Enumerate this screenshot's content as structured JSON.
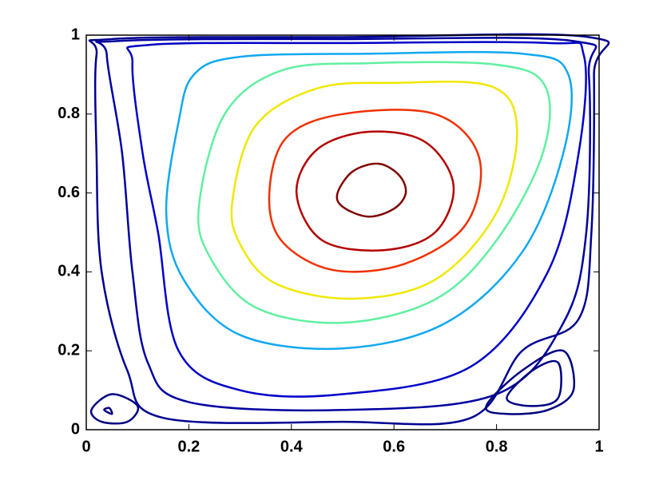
{
  "chart_data": {
    "type": "contour",
    "xlim": [
      0,
      1
    ],
    "ylim": [
      0,
      1
    ],
    "xticks": [
      0,
      0.2,
      0.4,
      0.6,
      0.8,
      1
    ],
    "yticks": [
      0,
      0.2,
      0.4,
      0.6,
      0.8,
      1
    ],
    "contours": [
      {
        "color": "#800000",
        "x": [
          0.49,
          0.52,
          0.57,
          0.61,
          0.623,
          0.6,
          0.55,
          0.5
        ],
        "y": [
          0.6,
          0.655,
          0.674,
          0.645,
          0.6,
          0.56,
          0.54,
          0.565
        ]
      },
      {
        "color": "#b40000",
        "x": [
          0.41,
          0.45,
          0.55,
          0.66,
          0.716,
          0.68,
          0.58,
          0.46
        ],
        "y": [
          0.6,
          0.71,
          0.755,
          0.73,
          0.62,
          0.5,
          0.455,
          0.48
        ]
      },
      {
        "color": "#f03000",
        "x": [
          0.357,
          0.39,
          0.5,
          0.68,
          0.766,
          0.74,
          0.62,
          0.48,
          0.38
        ],
        "y": [
          0.6,
          0.74,
          0.8,
          0.8,
          0.69,
          0.52,
          0.42,
          0.405,
          0.48
        ]
      },
      {
        "color": "#f0e800",
        "x": [
          0.285,
          0.33,
          0.45,
          0.6,
          0.79,
          0.84,
          0.8,
          0.68,
          0.52,
          0.37,
          0.3
        ],
        "y": [
          0.58,
          0.77,
          0.865,
          0.879,
          0.87,
          0.76,
          0.55,
          0.38,
          0.332,
          0.37,
          0.47
        ]
      },
      {
        "color": "#60f0a0",
        "x": [
          0.22,
          0.27,
          0.38,
          0.55,
          0.8,
          0.895,
          0.89,
          0.8,
          0.68,
          0.5,
          0.33,
          0.24
        ],
        "y": [
          0.57,
          0.8,
          0.91,
          0.929,
          0.925,
          0.87,
          0.7,
          0.48,
          0.33,
          0.271,
          0.31,
          0.44
        ]
      },
      {
        "color": "#10a8f0",
        "x": [
          0.156,
          0.18,
          0.21,
          0.3,
          0.55,
          0.85,
          0.94,
          0.93,
          0.85,
          0.7,
          0.5,
          0.3,
          0.19
        ],
        "y": [
          0.55,
          0.78,
          0.9,
          0.945,
          0.953,
          0.953,
          0.9,
          0.7,
          0.45,
          0.27,
          0.206,
          0.24,
          0.38
        ]
      },
      {
        "color": "#0000c8",
        "x": [
          0.14,
          0.11,
          0.09,
          0.12,
          0.5,
          0.9,
          0.97,
          0.96,
          0.9,
          0.75,
          0.5,
          0.3,
          0.18
        ],
        "y": [
          0.5,
          0.7,
          0.93,
          0.975,
          0.98,
          0.98,
          0.95,
          0.7,
          0.4,
          0.16,
          0.09,
          0.1,
          0.2
        ]
      },
      {
        "color": "#0000a0",
        "x": [
          0.09,
          0.07,
          0.04,
          0.06,
          0.5,
          0.95,
          0.98,
          0.975,
          0.93,
          0.8,
          0.5,
          0.2,
          0.12
        ],
        "y": [
          0.4,
          0.7,
          0.95,
          0.985,
          0.99,
          0.985,
          0.9,
          0.5,
          0.27,
          0.09,
          0.05,
          0.07,
          0.17
        ]
      },
      {
        "color": "#000090",
        "x": [
          0.03,
          0.02,
          0.02,
          0.05,
          0.5,
          0.98,
          0.99,
          0.985,
          0.96,
          0.85,
          0.75,
          0.5,
          0.15,
          0.08
        ],
        "y": [
          0.4,
          0.7,
          0.95,
          0.99,
          0.995,
          0.995,
          0.9,
          0.5,
          0.28,
          0.2,
          0.03,
          0.02,
          0.03,
          0.15
        ]
      },
      {
        "color": "#000080",
        "x": [
          0.78,
          0.85,
          0.93,
          0.95,
          0.9,
          0.82
        ],
        "y": [
          0.06,
          0.15,
          0.2,
          0.1,
          0.05,
          0.04
        ]
      },
      {
        "color": "#000080",
        "x": [
          0.82,
          0.87,
          0.92,
          0.92,
          0.87
        ],
        "y": [
          0.08,
          0.15,
          0.17,
          0.08,
          0.06
        ]
      },
      {
        "color": "#000080",
        "x": [
          0.01,
          0.05,
          0.1,
          0.08,
          0.03
        ],
        "y": [
          0.05,
          0.09,
          0.06,
          0.02,
          0.02
        ]
      },
      {
        "color": "#000080",
        "x": [
          0.035,
          0.05,
          0.045
        ],
        "y": [
          0.05,
          0.04,
          0.055
        ]
      }
    ]
  }
}
